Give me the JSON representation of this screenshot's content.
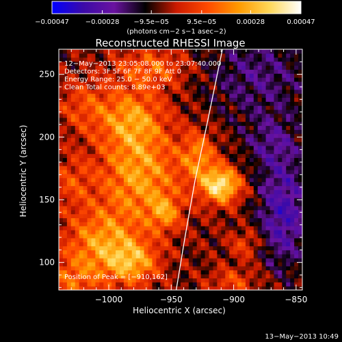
{
  "colorbar": {
    "min": -0.00047,
    "max": 0.00047,
    "ticks": [
      {
        "value": -0.00047,
        "label": "−0.00047"
      },
      {
        "value": -0.00028,
        "label": "−0.00028"
      },
      {
        "value": -9.5e-05,
        "label": "−9.5e−05"
      },
      {
        "value": 9.5e-05,
        "label": "9.5e−05"
      },
      {
        "value": 0.00028,
        "label": "0.00028"
      },
      {
        "value": 0.00047,
        "label": "0.00047"
      }
    ],
    "units_label": "(photons cm−2 s−1 asec−2)",
    "palette": [
      "#0000ff",
      "#3b0aa8",
      "#6a12a0",
      "#000000",
      "#cc1a00",
      "#ff4a00",
      "#ff9a00",
      "#ffd85a",
      "#ffffff"
    ]
  },
  "chart_data": {
    "type": "heatmap",
    "title": "Reconstructed RHESSI Image",
    "xlabel": "Heliocentric X (arcsec)",
    "ylabel": "Heliocentric Y (arcsec)",
    "xlim": [
      -1040,
      -845
    ],
    "ylim": [
      78,
      270
    ],
    "x_ticks": [
      {
        "value": -1000,
        "label": "−1000"
      },
      {
        "value": -950,
        "label": "−950"
      },
      {
        "value": -900,
        "label": "−900"
      },
      {
        "value": -850,
        "label": "−850"
      }
    ],
    "y_ticks": [
      {
        "value": 100,
        "label": "100"
      },
      {
        "value": 150,
        "label": "150"
      },
      {
        "value": 200,
        "label": "200"
      },
      {
        "value": 250,
        "label": "250"
      }
    ],
    "annotations": [
      "12−May−2013 23:05:08.000 to 23:07:40.000",
      "Detectors: 3F 5F 6F 7F 8F 9F  Att 0",
      "Energy Range: 25.0 − 50.0 keV",
      "Clean       Total counts: 8.89e+03"
    ],
    "peak_label": "Position of Peak = [−910,162]",
    "peak": {
      "x": -910,
      "y": 162
    },
    "limb_points": [
      {
        "x": -946,
        "y": 78
      },
      {
        "x": -939,
        "y": 120
      },
      {
        "x": -931,
        "y": 165
      },
      {
        "x": -921,
        "y": 212
      },
      {
        "x": -909,
        "y": 270
      }
    ],
    "sources": [
      {
        "x": -975,
        "y": 170,
        "sx": 23,
        "sy": 26,
        "amp": 0.62
      },
      {
        "x": -982,
        "y": 215,
        "sx": 18,
        "sy": 17,
        "amp": 0.55
      },
      {
        "x": -966,
        "y": 255,
        "sx": 20,
        "sy": 11,
        "amp": 0.42
      },
      {
        "x": -1005,
        "y": 115,
        "sx": 21,
        "sy": 20,
        "amp": 0.6
      },
      {
        "x": -980,
        "y": 100,
        "sx": 14,
        "sy": 12,
        "amp": 0.55
      },
      {
        "x": -1030,
        "y": 85,
        "sx": 15,
        "sy": 13,
        "amp": 0.35
      },
      {
        "x": -910,
        "y": 162,
        "sx": 11,
        "sy": 10,
        "amp": 0.95
      },
      {
        "x": -928,
        "y": 185,
        "sx": 10,
        "sy": 14,
        "amp": 0.5
      },
      {
        "x": -1020,
        "y": 225,
        "sx": 15,
        "sy": 15,
        "amp": 0.3
      },
      {
        "x": -1030,
        "y": 165,
        "sx": 12,
        "sy": 14,
        "amp": 0.28
      },
      {
        "x": -955,
        "y": 140,
        "sx": 9,
        "sy": 10,
        "amp": 0.45
      },
      {
        "x": -890,
        "y": 115,
        "sx": 9,
        "sy": 8,
        "amp": 0.3
      },
      {
        "x": -900,
        "y": 85,
        "sx": 14,
        "sy": 8,
        "amp": 0.3
      },
      {
        "x": -860,
        "y": 140,
        "sx": 14,
        "sy": 30,
        "amp": -0.55
      },
      {
        "x": -880,
        "y": 250,
        "sx": 30,
        "sy": 25,
        "amp": -0.32
      },
      {
        "x": -870,
        "y": 195,
        "sx": 16,
        "sy": 16,
        "amp": -0.28
      }
    ]
  },
  "footer": {
    "timestamp": "13−May−2013 10:49"
  }
}
